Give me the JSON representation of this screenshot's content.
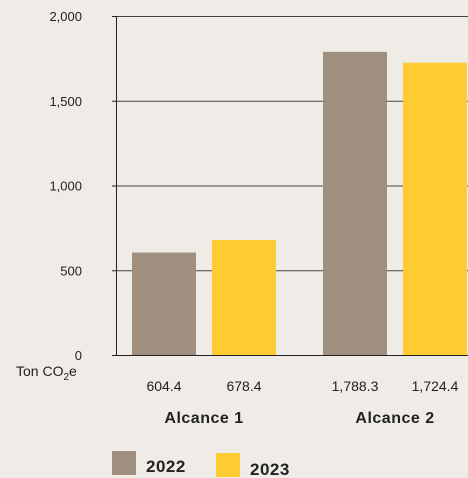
{
  "chart_data": {
    "type": "bar",
    "categories": [
      "Alcance 1",
      "Alcance 2"
    ],
    "series": [
      {
        "name": "2022",
        "values": [
          604.4,
          1788.3
        ],
        "value_labels": [
          "604.4",
          "1,788.3"
        ],
        "color": "#a08f7e"
      },
      {
        "name": "2023",
        "values": [
          678.4,
          1724.4
        ],
        "value_labels": [
          "678.4",
          "1,724.4"
        ],
        "color": "#ffcb32"
      }
    ],
    "ylim": [
      0,
      2000
    ],
    "y_ticks": [
      0,
      500,
      1000,
      1500,
      2000
    ],
    "y_tick_labels": [
      "0",
      "500",
      "1,000",
      "1,500",
      "2,000"
    ],
    "unit_label": {
      "base": "Ton CO",
      "sub": "2",
      "tail": "e"
    },
    "title": "",
    "xlabel": "",
    "ylabel": "",
    "grid": true,
    "legend_position": "bottom-left"
  }
}
